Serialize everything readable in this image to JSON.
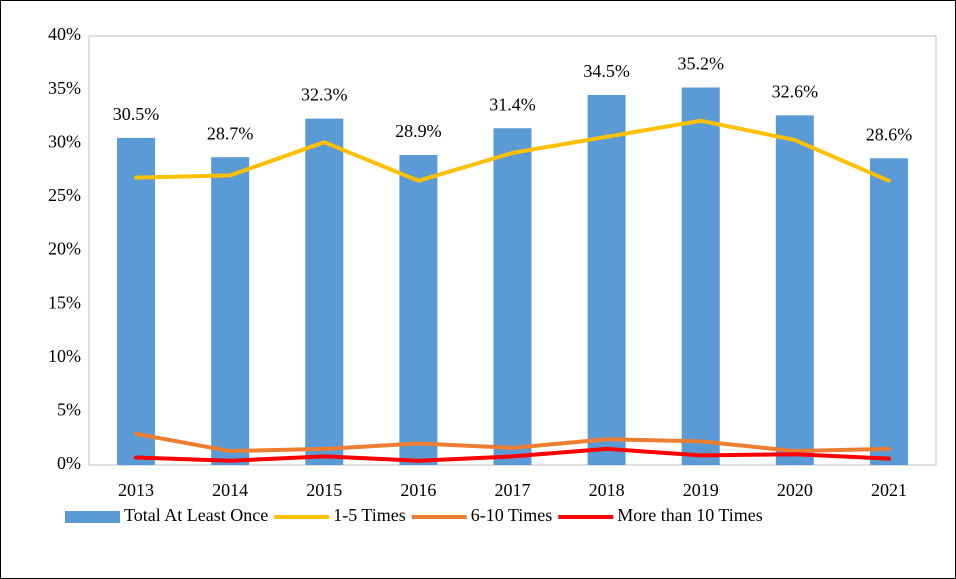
{
  "chart_data": {
    "type": "bar",
    "categories": [
      "2013",
      "2014",
      "2015",
      "2016",
      "2017",
      "2018",
      "2019",
      "2020",
      "2021"
    ],
    "series": [
      {
        "name": "Total At Least Once",
        "type": "bar",
        "color": "#5b9bd5",
        "values": [
          30.5,
          28.7,
          32.3,
          28.9,
          31.4,
          34.5,
          35.2,
          32.6,
          28.6
        ],
        "value_labels": [
          "30.5%",
          "28.7%",
          "32.3%",
          "28.9%",
          "31.4%",
          "34.5%",
          "35.2%",
          "32.6%",
          "28.6%"
        ]
      },
      {
        "name": "1-5 Times",
        "type": "line",
        "color": "#ffc000",
        "values": [
          26.8,
          27.0,
          30.1,
          26.5,
          29.1,
          30.6,
          32.1,
          30.3,
          26.5
        ]
      },
      {
        "name": "6-10 Times",
        "type": "line",
        "color": "#ed7d31",
        "values": [
          2.9,
          1.3,
          1.5,
          2.0,
          1.6,
          2.4,
          2.2,
          1.3,
          1.5
        ]
      },
      {
        "name": "More than 10 Times",
        "type": "line",
        "color": "#ff0000",
        "values": [
          0.7,
          0.4,
          0.8,
          0.4,
          0.8,
          1.5,
          0.9,
          1.0,
          0.6
        ]
      }
    ],
    "ylim": [
      0,
      40
    ],
    "yticks": [
      {
        "value": 0,
        "label": "0%"
      },
      {
        "value": 5,
        "label": "5%"
      },
      {
        "value": 10,
        "label": "10%"
      },
      {
        "value": 15,
        "label": "15%"
      },
      {
        "value": 20,
        "label": "20%"
      },
      {
        "value": 25,
        "label": "25%"
      },
      {
        "value": 30,
        "label": "30%"
      },
      {
        "value": 35,
        "label": "35%"
      },
      {
        "value": 40,
        "label": "40%"
      }
    ],
    "grid": false,
    "legend": "bottom"
  }
}
